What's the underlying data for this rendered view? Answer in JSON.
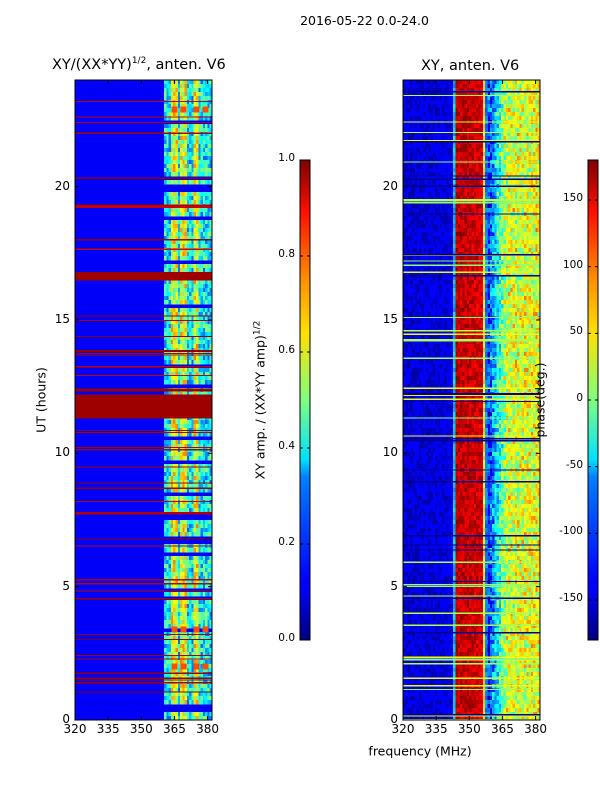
{
  "figure_title": "2016-05-22 0.0-24.0",
  "colors": {
    "background": "#ffffff",
    "jet_low": "#00007f",
    "jet_high": "#7f0000"
  },
  "chart_data": [
    {
      "type": "heatmap",
      "title": "XY/(XX*YY)^1/2, anten. V6",
      "title_main": "XY/(XX*YY)",
      "title_sup": "1/2",
      "title_suffix": ", anten. V6",
      "xlabel": "",
      "ylabel": "UT (hours)",
      "xlim": [
        320,
        382
      ],
      "ylim": [
        0,
        24
      ],
      "xticks": [
        "320",
        "335",
        "350",
        "365",
        "380"
      ],
      "xtick_values": [
        320,
        335,
        350,
        365,
        380
      ],
      "yticks": [
        "0",
        "5",
        "10",
        "15",
        "20"
      ],
      "ytick_values": [
        0,
        5,
        10,
        15,
        20
      ],
      "colorbar": {
        "label": "XY amp. / (XX*YY amp)^1/2",
        "label_main": "XY amp. / (XX*YY amp)",
        "label_sup": "1/2",
        "range": [
          0,
          1
        ],
        "ticks": [
          "0.0",
          "0.2",
          "0.4",
          "0.6",
          "0.8",
          "1.0"
        ],
        "tick_values": [
          0,
          0.2,
          0.4,
          0.6,
          0.8,
          1.0
        ],
        "colormap": "jet"
      },
      "background_value": 0.12,
      "bright_band_mhz": [
        360,
        382
      ],
      "bright_columns_mhz": [
        365,
        369,
        375
      ],
      "saturated_hours": [
        [
          11.3,
          12.2
        ],
        [
          16.5,
          16.8
        ]
      ],
      "strong_spike_hours": [
        22.9,
        3.4,
        2.0
      ]
    },
    {
      "type": "heatmap",
      "title": "XY, anten. V6",
      "xlabel": "frequency (MHz)",
      "ylabel": "",
      "xlim": [
        320,
        382
      ],
      "ylim": [
        0,
        24
      ],
      "xticks": [
        "320",
        "335",
        "350",
        "365",
        "380"
      ],
      "xtick_values": [
        320,
        335,
        350,
        365,
        380
      ],
      "yticks": [
        "0",
        "5",
        "10",
        "15",
        "20"
      ],
      "ytick_values": [
        0,
        5,
        10,
        15,
        20
      ],
      "colorbar": {
        "label": "phase(deg.)",
        "range": [
          -180,
          180
        ],
        "ticks": [
          "-150",
          "-100",
          "-50",
          "0",
          "50",
          "100",
          "150"
        ],
        "tick_values": [
          -150,
          -100,
          -50,
          0,
          50,
          100,
          150
        ],
        "colormap": "jet"
      },
      "phase_profile_mhz": [
        {
          "f": 320,
          "phase": -150
        },
        {
          "f": 343,
          "phase": -145
        },
        {
          "f": 344,
          "phase": 160
        },
        {
          "f": 356,
          "phase": 150
        },
        {
          "f": 358,
          "phase": -130
        },
        {
          "f": 367,
          "phase": 30
        },
        {
          "f": 382,
          "phase": 40
        }
      ]
    }
  ]
}
